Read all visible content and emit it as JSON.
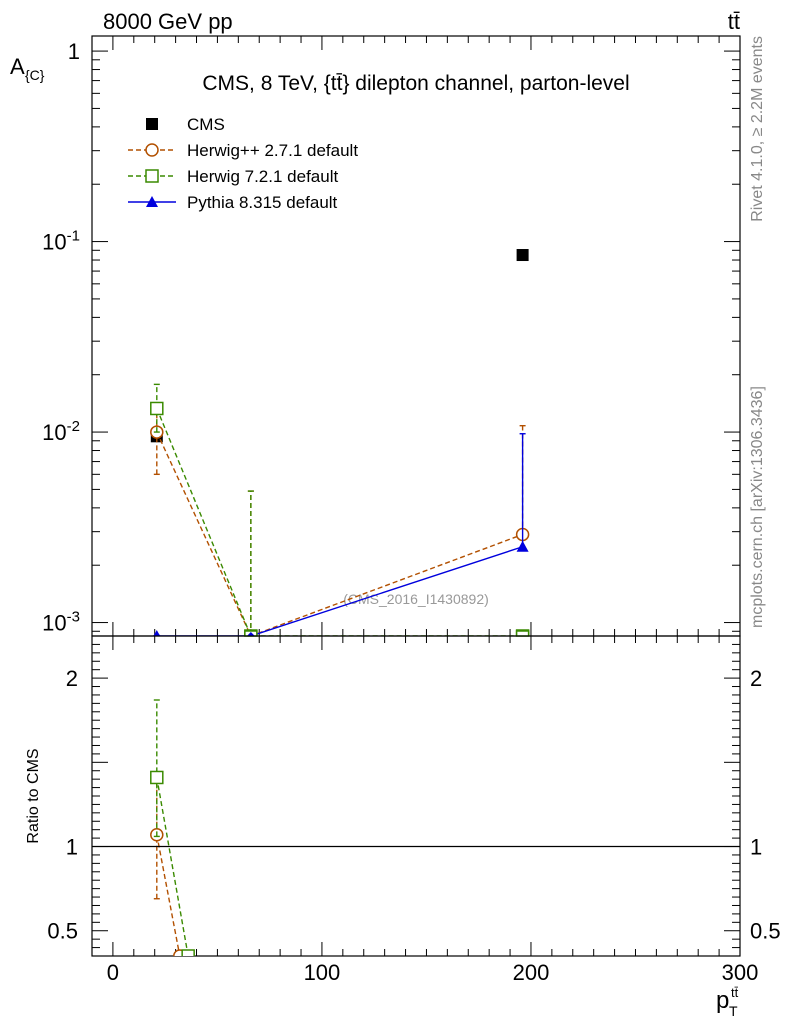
{
  "header": {
    "left": "8000 GeV pp",
    "right": "tt̄"
  },
  "side_labels": {
    "rivet": "Rivet 4.1.0, ≥ 2.2M events",
    "mcplots": "mcplots.cern.ch [arXiv:1306.3436]"
  },
  "colors": {
    "cms": "#000000",
    "herwigpp": "#b25000",
    "herwig7": "#3a8a00",
    "pythia": "#0000dd",
    "watermark": "#999999"
  },
  "chart_data": [
    {
      "type": "scatter",
      "title": "CMS, 8 TeV, {tt̄} dilepton channel, parton-level",
      "ylabel": "A_{C}",
      "xlabel": "p_T^{tt̄}",
      "y_scale": "log",
      "xlim": [
        -10,
        300
      ],
      "ylim": [
        0.00085,
        1.2
      ],
      "y_tick_labels": [
        {
          "value": 1,
          "label": "1"
        },
        {
          "value": 0.1,
          "label": "10^-1"
        },
        {
          "value": 0.01,
          "label": "10^-2"
        },
        {
          "value": 0.001,
          "label": "10^-3"
        }
      ],
      "legend_position": "top-left",
      "watermark": "(CMS_2016_I1430892)",
      "series": [
        {
          "name": "CMS",
          "key": "cms",
          "marker": "square-filled",
          "line": "none",
          "points": [
            {
              "x": 21,
              "y": 0.0095
            },
            {
              "x": 196,
              "y": 0.085
            }
          ]
        },
        {
          "name": "Herwig++ 2.7.1 default",
          "key": "herwigpp",
          "marker": "circle-open",
          "line": "dashed",
          "points": [
            {
              "x": 21,
              "y": 0.01,
              "ylo": 0.006,
              "yhi": 0.0135
            },
            {
              "x": 66,
              "y": 0.00082,
              "yhi": 0.0049
            },
            {
              "x": 196,
              "y": 0.0029,
              "yhi": 0.0108
            }
          ]
        },
        {
          "name": "Herwig 7.2.1 default",
          "key": "herwig7",
          "marker": "square-open",
          "line": "dashed",
          "points": [
            {
              "x": 21,
              "y": 0.0133,
              "ylo": 0.01,
              "yhi": 0.0178
            },
            {
              "x": 66,
              "y": 0.00082,
              "yhi": 0.0049
            },
            {
              "x": 196,
              "y": 0.00082
            }
          ]
        },
        {
          "name": "Pythia 8.315 default",
          "key": "pythia",
          "marker": "triangle-filled",
          "line": "solid",
          "points": [
            {
              "x": 21,
              "y": 0.00082
            },
            {
              "x": 66,
              "y": 0.00082
            },
            {
              "x": 196,
              "y": 0.0025,
              "yhi": 0.0098
            }
          ]
        }
      ]
    },
    {
      "type": "scatter",
      "ylabel": "Ratio to CMS",
      "y_scale": "linear",
      "xlim": [
        -10,
        300
      ],
      "ylim": [
        0.35,
        2.25
      ],
      "x_tick_labels": [
        {
          "value": 0,
          "label": "0"
        },
        {
          "value": 100,
          "label": "100"
        },
        {
          "value": 200,
          "label": "200"
        },
        {
          "value": 300,
          "label": "300"
        }
      ],
      "y_tick_labels": [
        {
          "value": 2,
          "label": "2"
        },
        {
          "value": 1,
          "label": "1"
        },
        {
          "value": 0.5,
          "label": "0.5"
        }
      ],
      "reference_line": 1,
      "series": [
        {
          "name": "Herwig++ 2.7.1 default",
          "key": "herwigpp",
          "marker": "circle-open",
          "line": "dashed",
          "points": [
            {
              "x": 21,
              "y": 1.07,
              "ylo": 0.69,
              "yhi": 1.41
            },
            {
              "x": 32,
              "y": 0.3
            }
          ]
        },
        {
          "name": "Herwig 7.2.1 default",
          "key": "herwig7",
          "marker": "square-open",
          "line": "dashed",
          "points": [
            {
              "x": 21,
              "y": 1.41,
              "ylo": 1.06,
              "yhi": 1.87
            },
            {
              "x": 36,
              "y": 0.3
            }
          ]
        }
      ]
    }
  ]
}
